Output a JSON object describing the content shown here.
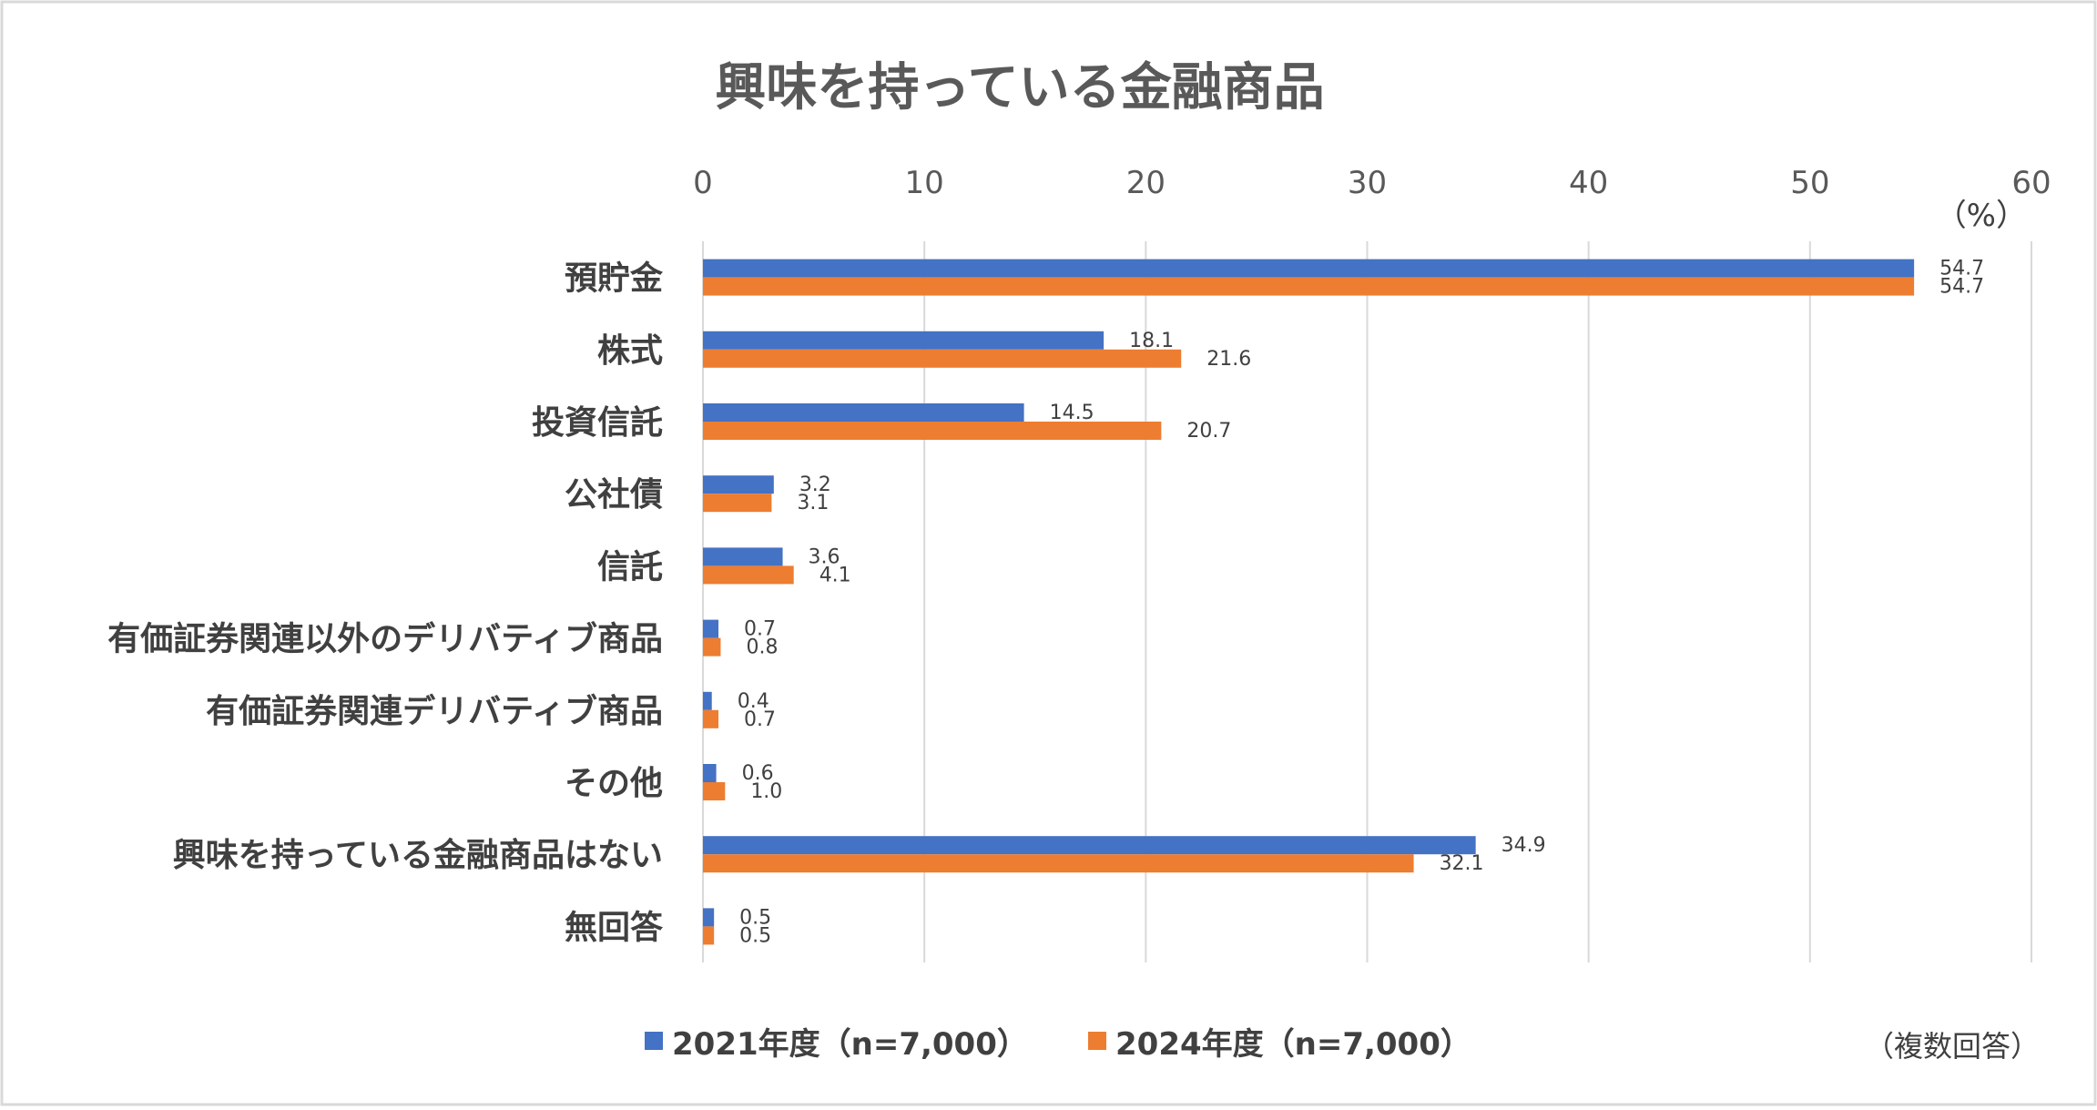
{
  "chart_data": {
    "type": "bar",
    "orientation": "horizontal",
    "title": "興味を持っている金融商品",
    "unit_label": "（%）",
    "note": "（複数回答）",
    "xlim": [
      0,
      60
    ],
    "x_ticks": [
      "0",
      "10",
      "20",
      "30",
      "40",
      "50",
      "60"
    ],
    "grid": true,
    "legend_position": "bottom",
    "categories": [
      "預貯金",
      "株式",
      "投資信託",
      "公社債",
      "信託",
      "有価証券関連以外のデリバティブ商品",
      "有価証券関連デリバティブ商品",
      "その他",
      "興味を持っている金融商品はない",
      "無回答"
    ],
    "series": [
      {
        "name": "2021年度（n=7,000）",
        "color": "#4472C4",
        "values": [
          54.7,
          18.1,
          14.5,
          3.2,
          3.6,
          0.7,
          0.4,
          0.6,
          34.9,
          0.5
        ],
        "labels": [
          "54.7",
          "18.1",
          "14.5",
          "3.2",
          "3.6",
          "0.7",
          "0.4",
          "0.6",
          "34.9",
          "0.5"
        ]
      },
      {
        "name": "2024年度（n=7,000）",
        "color": "#ED7D31",
        "values": [
          54.7,
          21.6,
          20.7,
          3.1,
          4.1,
          0.8,
          0.7,
          1.0,
          32.1,
          0.5
        ],
        "labels": [
          "54.7",
          "21.6",
          "20.7",
          "3.1",
          "4.1",
          "0.8",
          "0.7",
          "1.0",
          "32.1",
          "0.5"
        ]
      }
    ]
  }
}
